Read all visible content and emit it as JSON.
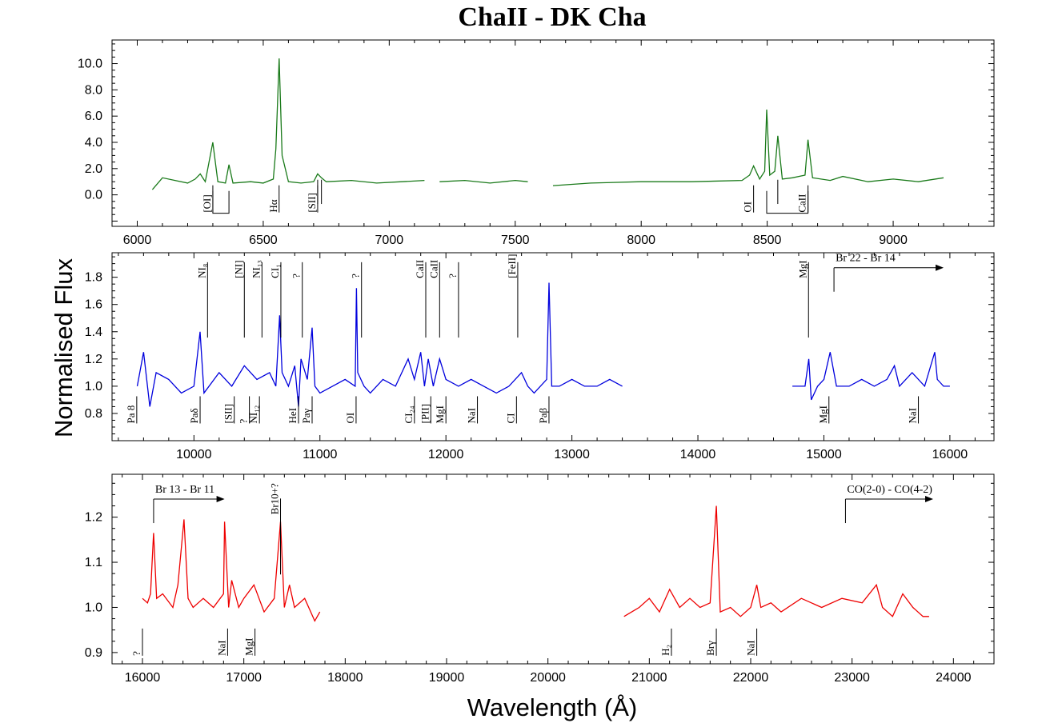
{
  "figure": {
    "title": "ChaII - DK Cha",
    "xlabel": "Wavelength (Å)",
    "ylabel": "Normalised Flux"
  },
  "chart_data": [
    {
      "type": "line",
      "color": "#1a7a1a",
      "xlim": [
        5900,
        9400
      ],
      "ylim": [
        -2.4,
        11.8
      ],
      "xticks": [
        6000,
        6500,
        7000,
        7500,
        8000,
        8500,
        9000
      ],
      "yticks": [
        0.0,
        2.0,
        4.0,
        6.0,
        8.0,
        10.0
      ],
      "ytick_labels": [
        "0.0",
        "2.0",
        "4.0",
        "6.0",
        "8.0",
        "10.0"
      ],
      "series": [
        {
          "x": [
            6060,
            6100,
            6150,
            6200,
            6230,
            6250,
            6270,
            6300,
            6320,
            6350,
            6364,
            6380,
            6450,
            6500,
            6540,
            6550,
            6563,
            6575,
            6600,
            6650,
            6700,
            6716,
            6731,
            6750,
            6850,
            6950,
            7050,
            7140
          ],
          "y": [
            0.4,
            1.3,
            1.1,
            0.9,
            1.2,
            1.6,
            1.0,
            4.0,
            1.0,
            0.9,
            2.3,
            0.9,
            1.0,
            0.9,
            1.2,
            3.5,
            10.4,
            3.0,
            1.0,
            0.9,
            1.0,
            1.6,
            1.3,
            1.0,
            1.1,
            0.9,
            1.0,
            1.1
          ]
        },
        {
          "x": [
            7200,
            7300,
            7400,
            7500,
            7550
          ],
          "y": [
            1.0,
            1.1,
            0.9,
            1.1,
            1.0
          ]
        },
        {
          "x": [
            7650,
            7800,
            8000,
            8200,
            8400,
            8430,
            8446,
            8470,
            8490,
            8498,
            8510,
            8530,
            8542,
            8560,
            8600,
            8650,
            8662,
            8680,
            8750,
            8800,
            8900,
            9000,
            9100,
            9200
          ],
          "y": [
            0.7,
            0.9,
            1.0,
            1.0,
            1.1,
            1.5,
            2.2,
            1.2,
            1.8,
            6.5,
            1.5,
            1.8,
            4.5,
            1.2,
            1.3,
            1.5,
            4.2,
            1.3,
            1.1,
            1.4,
            1.0,
            1.2,
            1.0,
            1.3
          ]
        }
      ],
      "lines_below": [
        {
          "label": "[OI]",
          "x": 6300,
          "y": -1.1
        },
        {
          "label": "Hα",
          "x": 6563,
          "y": -1.1
        },
        {
          "label": "[SII]",
          "x": 6716,
          "y": -1.1
        },
        {
          "label": "OI",
          "x": 8446,
          "y": -1.1
        },
        {
          "label": "CaII",
          "x": 8662,
          "y": -1.1
        }
      ],
      "brackets": [
        {
          "x1": 6300,
          "x2": 6364,
          "y_top": 0.3,
          "y_bottom": -1.4
        },
        {
          "x1": 8498,
          "x2": 8662,
          "y_top": 0.3,
          "y_bottom": -1.4
        }
      ],
      "ticks_only": [
        6716,
        6731,
        8542
      ],
      "range_arrows": []
    },
    {
      "type": "line",
      "color": "#0000dd",
      "xlim": [
        9350,
        16350
      ],
      "ylim": [
        0.6,
        1.98
      ],
      "xticks": [
        10000,
        11000,
        12000,
        13000,
        14000,
        15000,
        16000
      ],
      "yticks": [
        0.8,
        1.0,
        1.2,
        1.4,
        1.6,
        1.8
      ],
      "ytick_labels": [
        "0.8",
        "1.0",
        "1.2",
        "1.4",
        "1.6",
        "1.8"
      ],
      "series": [
        {
          "x": [
            9550,
            9600,
            9650,
            9700,
            9800,
            9900,
            10000,
            10049,
            10080,
            10200,
            10300,
            10400,
            10500,
            10600,
            10650,
            10680,
            10700,
            10750,
            10800,
            10830,
            10850,
            10900,
            10938,
            10960,
            11000,
            11100,
            11200,
            11280,
            11290,
            11300,
            11350,
            11400,
            11500,
            11600,
            11700,
            11750,
            11800,
            11830,
            11860,
            11900,
            11950,
            12000,
            12100,
            12200,
            12300,
            12400,
            12500,
            12600,
            12650,
            12700,
            12800,
            12818,
            12840,
            12900,
            13000,
            13100,
            13200,
            13300,
            13400
          ],
          "y": [
            1.0,
            1.25,
            0.85,
            1.1,
            1.05,
            0.95,
            1.0,
            1.4,
            0.95,
            1.1,
            1.0,
            1.15,
            1.05,
            1.1,
            1.0,
            1.52,
            1.1,
            1.0,
            1.15,
            0.85,
            1.2,
            1.05,
            1.43,
            1.0,
            0.95,
            1.0,
            1.05,
            1.0,
            1.72,
            1.1,
            1.0,
            0.95,
            1.05,
            1.0,
            1.2,
            1.05,
            1.25,
            1.0,
            1.2,
            1.0,
            1.2,
            1.05,
            1.0,
            1.05,
            1.0,
            0.95,
            1.0,
            1.1,
            1.0,
            0.95,
            1.05,
            1.76,
            1.0,
            1.0,
            1.05,
            1.0,
            1.0,
            1.05,
            1.0
          ]
        },
        {
          "x": [
            14750,
            14850,
            14880,
            14900,
            14950,
            15000,
            15050,
            15100,
            15200,
            15300,
            15400,
            15500,
            15560,
            15600,
            15700,
            15800,
            15880,
            15900,
            15950,
            16000
          ],
          "y": [
            1.0,
            1.0,
            1.2,
            0.9,
            1.0,
            1.05,
            1.25,
            1.0,
            1.0,
            1.05,
            1.0,
            1.05,
            1.15,
            1.0,
            1.1,
            1.0,
            1.25,
            1.05,
            1.0,
            1.0
          ]
        }
      ],
      "lines_above": [
        {
          "label": "NI₈",
          "x": 10108,
          "y": 1.84
        },
        {
          "label": "[NI]",
          "x": 10400,
          "y": 1.84
        },
        {
          "label": "NI₁₃",
          "x": 10540,
          "y": 1.84
        },
        {
          "label": "CI₁",
          "x": 10690,
          "y": 1.84
        },
        {
          "label": "?",
          "x": 10860,
          "y": 1.84
        },
        {
          "label": "?",
          "x": 11330,
          "y": 1.84
        },
        {
          "label": "CaII",
          "x": 11840,
          "y": 1.84
        },
        {
          "label": "CaII",
          "x": 11950,
          "y": 1.84
        },
        {
          "label": "?",
          "x": 12100,
          "y": 1.84
        },
        {
          "label": "[FeII]",
          "x": 12570,
          "y": 1.84
        },
        {
          "label": "MgI",
          "x": 14878,
          "y": 1.84
        }
      ],
      "lines_below": [
        {
          "label": "Pa 8",
          "x": 9546,
          "y": 0.75
        },
        {
          "label": "Paδ",
          "x": 10049,
          "y": 0.75
        },
        {
          "label": "[SII]",
          "x": 10320,
          "y": 0.75
        },
        {
          "label": "?",
          "x": 10440,
          "y": 0.75
        },
        {
          "label": "NI₁₂",
          "x": 10520,
          "y": 0.75
        },
        {
          "label": "HeI",
          "x": 10830,
          "y": 0.75
        },
        {
          "label": "Paγ",
          "x": 10938,
          "y": 0.75
        },
        {
          "label": "OI",
          "x": 11287,
          "y": 0.75
        },
        {
          "label": "CI₂₄",
          "x": 11750,
          "y": 0.75
        },
        {
          "label": "[PII]",
          "x": 11880,
          "y": 0.75
        },
        {
          "label": "MgI",
          "x": 12000,
          "y": 0.75
        },
        {
          "label": "NaI",
          "x": 12250,
          "y": 0.75
        },
        {
          "label": "CI",
          "x": 12560,
          "y": 0.75
        },
        {
          "label": "Paβ",
          "x": 12818,
          "y": 0.75
        },
        {
          "label": "MgI",
          "x": 15040,
          "y": 0.75
        },
        {
          "label": "NaI",
          "x": 15750,
          "y": 0.75
        }
      ],
      "range_arrows": [
        {
          "label": "Br 22 - Br 14",
          "x1": 15080,
          "x2": 15950,
          "y": 1.87
        }
      ]
    },
    {
      "type": "line",
      "color": "#ee0000",
      "xlim": [
        15700,
        24400
      ],
      "ylim": [
        0.875,
        1.295
      ],
      "xticks": [
        16000,
        17000,
        18000,
        19000,
        20000,
        21000,
        22000,
        23000,
        24000
      ],
      "yticks": [
        0.9,
        1.0,
        1.1,
        1.2
      ],
      "ytick_labels": [
        "0.9",
        "1.0",
        "1.1",
        "1.2"
      ],
      "series": [
        {
          "x": [
            16000,
            16050,
            16080,
            16110,
            16140,
            16200,
            16300,
            16350,
            16410,
            16450,
            16500,
            16600,
            16700,
            16800,
            16810,
            16850,
            16880,
            16950,
            17000,
            17100,
            17200,
            17300,
            17362,
            17400,
            17450,
            17500,
            17600,
            17700,
            17750
          ],
          "y": [
            1.02,
            1.01,
            1.03,
            1.165,
            1.02,
            1.03,
            1.0,
            1.05,
            1.195,
            1.02,
            1.0,
            1.02,
            1.0,
            1.03,
            1.19,
            1.0,
            1.06,
            1.0,
            1.02,
            1.05,
            0.99,
            1.02,
            1.19,
            1.0,
            1.05,
            1.0,
            1.02,
            0.97,
            0.99
          ]
        },
        {
          "x": [
            20750,
            20900,
            21000,
            21100,
            21200,
            21300,
            21400,
            21500,
            21600,
            21661,
            21700,
            21800,
            21900,
            22000,
            22060,
            22100,
            22200,
            22300,
            22500,
            22700,
            22900,
            23100,
            23240,
            23300,
            23400,
            23500,
            23600,
            23700,
            23760
          ],
          "y": [
            0.98,
            1.0,
            1.02,
            0.99,
            1.04,
            1.0,
            1.02,
            1.0,
            1.01,
            1.225,
            0.99,
            1.0,
            0.98,
            1.0,
            1.05,
            1.0,
            1.01,
            0.99,
            1.02,
            1.0,
            1.02,
            1.01,
            1.05,
            1.0,
            0.98,
            1.03,
            1.0,
            0.98,
            0.98
          ]
        }
      ],
      "lines_above": [
        {
          "label": "Br10+?",
          "x": 17362,
          "y": 1.22
        }
      ],
      "lines_below": [
        {
          "label": "?",
          "x": 16000,
          "y": 0.9
        },
        {
          "label": "NaI",
          "x": 16840,
          "y": 0.9
        },
        {
          "label": "MgI",
          "x": 17110,
          "y": 0.9
        },
        {
          "label": "H₂",
          "x": 21218,
          "y": 0.9
        },
        {
          "label": "Brγ",
          "x": 21661,
          "y": 0.9
        },
        {
          "label": "NaI",
          "x": 22060,
          "y": 0.9
        }
      ],
      "range_arrows": [
        {
          "label": "Br 13 - Br 11",
          "x1": 16110,
          "x2": 16810,
          "y": 1.24
        },
        {
          "label": "CO(2-0) - CO(4-2)",
          "x1": 22935,
          "x2": 23800,
          "y": 1.24
        }
      ]
    }
  ]
}
